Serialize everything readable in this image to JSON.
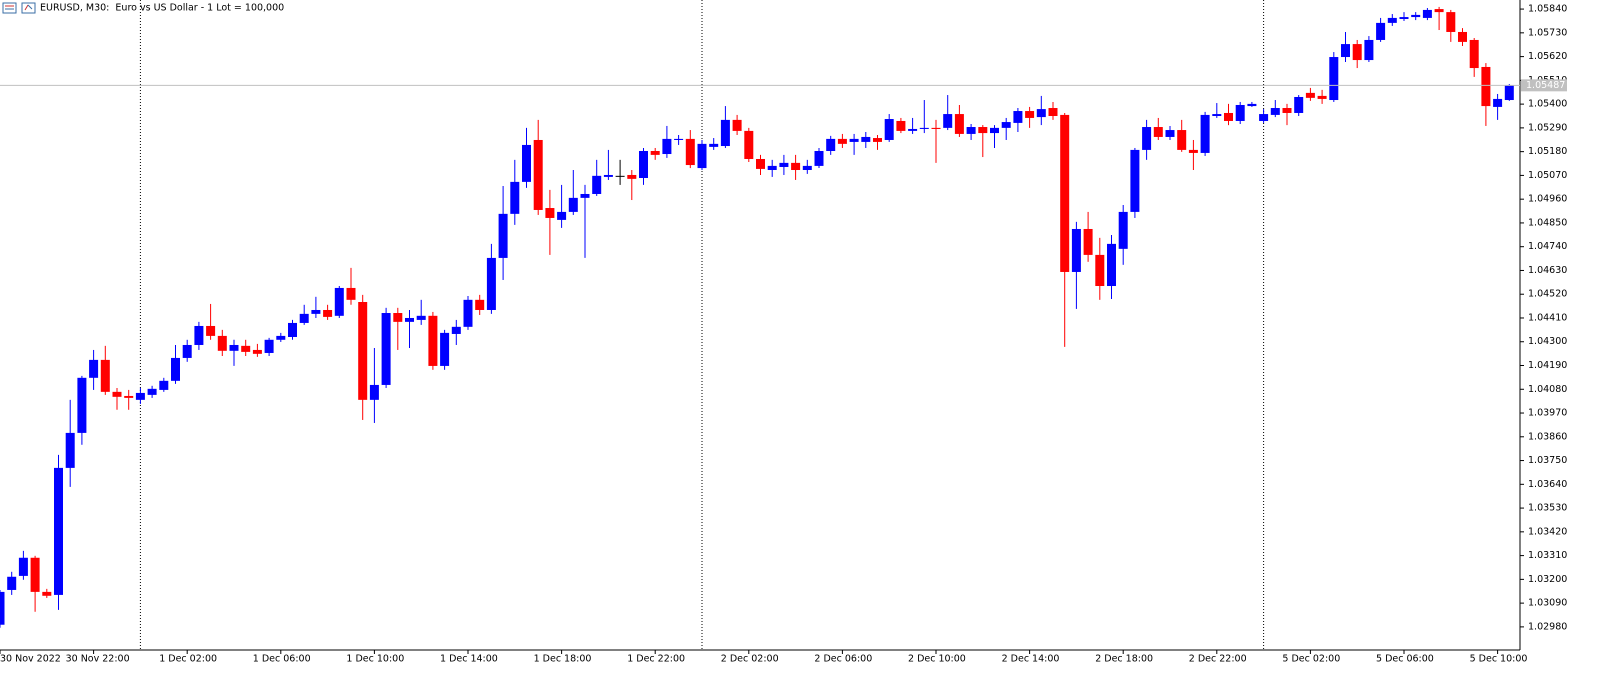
{
  "chart_data": {
    "type": "candlestick",
    "title": "EURUSD, M30:  Euro vs US Dollar - 1 Lot = 100,000",
    "categories": [
      "30 Nov 2022",
      null,
      null,
      null,
      null,
      null,
      null,
      null,
      "30 Nov 22:00",
      null,
      null,
      null,
      null,
      null,
      null,
      null,
      "1 Dec 02:00",
      null,
      null,
      null,
      null,
      null,
      null,
      null,
      "1 Dec 06:00",
      null,
      null,
      null,
      null,
      null,
      null,
      null,
      "1 Dec 10:00",
      null,
      null,
      null,
      null,
      null,
      null,
      null,
      "1 Dec 14:00",
      null,
      null,
      null,
      null,
      null,
      null,
      null,
      "1 Dec 18:00",
      null,
      null,
      null,
      null,
      null,
      null,
      null,
      "1 Dec 22:00",
      null,
      null,
      null,
      null,
      null,
      null,
      null,
      "2 Dec 02:00",
      null,
      null,
      null,
      null,
      null,
      null,
      null,
      "2 Dec 06:00",
      null,
      null,
      null,
      null,
      null,
      null,
      null,
      "2 Dec 10:00",
      null,
      null,
      null,
      null,
      null,
      null,
      null,
      "2 Dec 14:00",
      null,
      null,
      null,
      null,
      null,
      null,
      null,
      "2 Dec 18:00",
      null,
      null,
      null,
      null,
      null,
      null,
      null,
      "2 Dec 22:00",
      null,
      null,
      null,
      null,
      null,
      null,
      null,
      "5 Dec 02:00",
      null,
      null,
      null,
      null,
      null,
      null,
      null,
      "5 Dec 06:00",
      null,
      null,
      null,
      null,
      null,
      null,
      null,
      "5 Dec 10:00",
      null
    ],
    "open": [
      1.0299,
      1.03151,
      1.03216,
      1.033,
      1.03142,
      1.03128,
      1.03716,
      1.03878,
      1.04133,
      1.04216,
      1.04068,
      1.04049,
      1.04031,
      1.04054,
      1.04077,
      1.04119,
      1.04225,
      1.04285,
      1.04373,
      1.04327,
      1.04258,
      1.04281,
      1.04262,
      1.04248,
      1.04309,
      1.04322,
      1.04387,
      1.04429,
      1.04447,
      1.0442,
      1.04549,
      1.04484,
      1.04031,
      1.041,
      1.04433,
      1.04392,
      1.04401,
      1.0442,
      1.04188,
      1.04336,
      1.04369,
      1.04494,
      1.04447,
      1.04688,
      1.04892,
      1.0504,
      1.05234,
      1.04919,
      1.04864,
      1.04901,
      1.04966,
      1.04984,
      1.05063,
      1.05068,
      1.05072,
      1.05058,
      1.05183,
      1.05169,
      1.05234,
      1.05239,
      1.05104,
      1.05202,
      1.05206,
      1.05327,
      1.05276,
      1.05146,
      1.05095,
      1.05109,
      1.05128,
      1.05095,
      1.05114,
      1.05183,
      1.05239,
      1.05225,
      1.05225,
      1.05243,
      1.05234,
      1.05322,
      1.05276,
      1.05285,
      1.0529,
      1.0529,
      1.05354,
      1.05262,
      1.05294,
      1.05266,
      1.0529,
      1.05313,
      1.05368,
      1.0534,
      1.05382,
      1.0535,
      1.04623,
      1.04822,
      1.04702,
      1.04558,
      1.0473,
      1.04901,
      1.05188,
      1.05294,
      1.05248,
      1.0528,
      1.05188,
      1.05174,
      1.05345,
      1.05359,
      1.05322,
      1.05391,
      1.05322,
      1.0535,
      1.05382,
      1.05359,
      1.05452,
      1.05438,
      1.05419,
      1.05618,
      1.05678,
      1.05604,
      1.05697,
      1.05776,
      1.05794,
      1.05803,
      1.05799,
      1.0584,
      1.05826,
      1.05734,
      1.05697,
      1.05572,
      1.05387,
      1.05419
    ],
    "high": [
      1.03151,
      1.03235,
      1.03332,
      1.03309,
      1.03156,
      1.03776,
      1.04031,
      1.04142,
      1.04262,
      1.04281,
      1.04086,
      1.04077,
      1.04086,
      1.04096,
      1.04133,
      1.04285,
      1.04309,
      1.04392,
      1.04475,
      1.04355,
      1.04309,
      1.04309,
      1.0429,
      1.04318,
      1.04341,
      1.04401,
      1.04471,
      1.04508,
      1.04471,
      1.04558,
      1.04642,
      1.04517,
      1.04271,
      1.04457,
      1.04457,
      1.04447,
      1.04494,
      1.04438,
      1.04355,
      1.04401,
      1.04512,
      1.04517,
      1.04753,
      1.05021,
      1.05142,
      1.0529,
      1.05327,
      1.05003,
      1.05026,
      1.05095,
      1.05026,
      1.05142,
      1.05188,
      1.05142,
      1.05095,
      1.05197,
      1.05197,
      1.05299,
      1.05257,
      1.0528,
      1.05234,
      1.05243,
      1.05391,
      1.0535,
      1.0529,
      1.05165,
      1.05142,
      1.05165,
      1.05165,
      1.05142,
      1.05197,
      1.05253,
      1.05262,
      1.05262,
      1.05271,
      1.05257,
      1.05354,
      1.05336,
      1.05336,
      1.05419,
      1.05327,
      1.05442,
      1.05396,
      1.05308,
      1.05303,
      1.05303,
      1.05336,
      1.05382,
      1.05387,
      1.05438,
      1.0541,
      1.05359,
      1.04855,
      1.04901,
      1.04781,
      1.04794,
      1.04933,
      1.05197,
      1.05327,
      1.05336,
      1.05299,
      1.05327,
      1.05234,
      1.05364,
      1.05405,
      1.05401,
      1.0541,
      1.0541,
      1.05377,
      1.05419,
      1.05401,
      1.05442,
      1.05475,
      1.05466,
      1.05641,
      1.05734,
      1.05697,
      1.05715,
      1.05799,
      1.05817,
      1.05826,
      1.05826,
      1.05845,
      1.0585,
      1.05836,
      1.05752,
      1.05706,
      1.0559,
      1.05447,
      1.05493
    ],
    "low": [
      1.02976,
      1.03128,
      1.03198,
      1.0305,
      1.03114,
      1.03059,
      1.03628,
      1.03823,
      1.04077,
      1.04054,
      1.03985,
      1.03985,
      1.04012,
      1.0404,
      1.04068,
      1.04105,
      1.04207,
      1.04262,
      1.04309,
      1.04234,
      1.04188,
      1.04234,
      1.0423,
      1.04234,
      1.04299,
      1.04309,
      1.04378,
      1.0441,
      1.04401,
      1.0441,
      1.04471,
      1.03938,
      1.03924,
      1.04086,
      1.04262,
      1.04271,
      1.04378,
      1.0417,
      1.0417,
      1.04285,
      1.04355,
      1.04424,
      1.04429,
      1.04586,
      1.04841,
      1.05012,
      1.04887,
      1.04702,
      1.04827,
      1.04887,
      1.04688,
      1.04975,
      1.05049,
      1.05026,
      1.04956,
      1.05026,
      1.05142,
      1.05151,
      1.05211,
      1.05104,
      1.05095,
      1.05188,
      1.05197,
      1.05257,
      1.05132,
      1.05072,
      1.05063,
      1.05072,
      1.05049,
      1.05077,
      1.05104,
      1.05165,
      1.05197,
      1.05165,
      1.05197,
      1.05188,
      1.05225,
      1.05266,
      1.05262,
      1.05266,
      1.05128,
      1.0528,
      1.05248,
      1.05234,
      1.05155,
      1.05197,
      1.05234,
      1.05271,
      1.0529,
      1.05303,
      1.05327,
      1.04276,
      1.04452,
      1.0467,
      1.04494,
      1.04498,
      1.04656,
      1.04873,
      1.05142,
      1.05234,
      1.05234,
      1.05179,
      1.05095,
      1.0516,
      1.05336,
      1.05303,
      1.05308,
      1.05387,
      1.05313,
      1.0534,
      1.05303,
      1.05345,
      1.05415,
      1.05401,
      1.0541,
      1.05595,
      1.05567,
      1.05595,
      1.05688,
      1.05762,
      1.05785,
      1.05789,
      1.05789,
      1.05743,
      1.05688,
      1.05669,
      1.05526,
      1.05299,
      1.05327,
      1.05415
    ],
    "close": [
      1.03142,
      1.03212,
      1.033,
      1.03142,
      1.03124,
      1.03716,
      1.03878,
      1.04133,
      1.04216,
      1.04068,
      1.04045,
      1.0404,
      1.04063,
      1.04082,
      1.04119,
      1.04225,
      1.04285,
      1.04373,
      1.04327,
      1.04258,
      1.04285,
      1.04253,
      1.04244,
      1.04309,
      1.04327,
      1.04387,
      1.04429,
      1.04447,
      1.04415,
      1.04549,
      1.04494,
      1.04031,
      1.041,
      1.04433,
      1.04392,
      1.0441,
      1.0442,
      1.04188,
      1.04341,
      1.04369,
      1.04494,
      1.04447,
      1.04688,
      1.04892,
      1.0504,
      1.05211,
      1.0491,
      1.04873,
      1.04901,
      1.04966,
      1.04984,
      1.05068,
      1.05072,
      1.05068,
      1.05054,
      1.05183,
      1.05165,
      1.05239,
      1.05239,
      1.05118,
      1.05216,
      1.05216,
      1.05327,
      1.05276,
      1.05146,
      1.051,
      1.05114,
      1.05128,
      1.05095,
      1.05114,
      1.05183,
      1.05239,
      1.05216,
      1.05239,
      1.05248,
      1.05225,
      1.05331,
      1.05276,
      1.05285,
      1.0529,
      1.05285,
      1.05354,
      1.05262,
      1.05294,
      1.05266,
      1.0529,
      1.05317,
      1.05368,
      1.05336,
      1.05377,
      1.05345,
      1.04623,
      1.04822,
      1.04702,
      1.04558,
      1.04753,
      1.04901,
      1.05188,
      1.05294,
      1.05248,
      1.0528,
      1.05188,
      1.05174,
      1.0535,
      1.05354,
      1.05322,
      1.05396,
      1.05401,
      1.05354,
      1.05382,
      1.05359,
      1.05433,
      1.05429,
      1.05424,
      1.05618,
      1.05678,
      1.05604,
      1.05697,
      1.05776,
      1.05799,
      1.05803,
      1.05813,
      1.05836,
      1.05826,
      1.05734,
      1.05688,
      1.05567,
      1.05391,
      1.05424,
      1.05487
    ],
    "up_color": "#0000ff",
    "down_color": "#ff0000",
    "doji_color": "#000000",
    "current_price": 1.05487,
    "ylim": [
      1.02873,
      1.05882
    ],
    "yticks": [
      {
        "value": 1.0584,
        "label": "1.05840"
      },
      {
        "value": 1.0573,
        "label": "1.05730"
      },
      {
        "value": 1.0562,
        "label": "1.05620"
      },
      {
        "value": 1.0551,
        "label": "1.05510"
      },
      {
        "value": 1.054,
        "label": "1.05400"
      },
      {
        "value": 1.0529,
        "label": "1.05290"
      },
      {
        "value": 1.0518,
        "label": "1.05180"
      },
      {
        "value": 1.0507,
        "label": "1.05070"
      },
      {
        "value": 1.0496,
        "label": "1.04960"
      },
      {
        "value": 1.0485,
        "label": "1.04850"
      },
      {
        "value": 1.0474,
        "label": "1.04740"
      },
      {
        "value": 1.0463,
        "label": "1.04630"
      },
      {
        "value": 1.0452,
        "label": "1.04520"
      },
      {
        "value": 1.0441,
        "label": "1.04410"
      },
      {
        "value": 1.043,
        "label": "1.04300"
      },
      {
        "value": 1.0419,
        "label": "1.04190"
      },
      {
        "value": 1.0408,
        "label": "1.04080"
      },
      {
        "value": 1.0397,
        "label": "1.03970"
      },
      {
        "value": 1.0386,
        "label": "1.03860"
      },
      {
        "value": 1.0375,
        "label": "1.03750"
      },
      {
        "value": 1.0364,
        "label": "1.03640"
      },
      {
        "value": 1.0353,
        "label": "1.03530"
      },
      {
        "value": 1.0342,
        "label": "1.03420"
      },
      {
        "value": 1.0331,
        "label": "1.03310"
      },
      {
        "value": 1.032,
        "label": "1.03200"
      },
      {
        "value": 1.0309,
        "label": "1.03090"
      },
      {
        "value": 1.0298,
        "label": "1.02980"
      }
    ],
    "grid": false
  }
}
